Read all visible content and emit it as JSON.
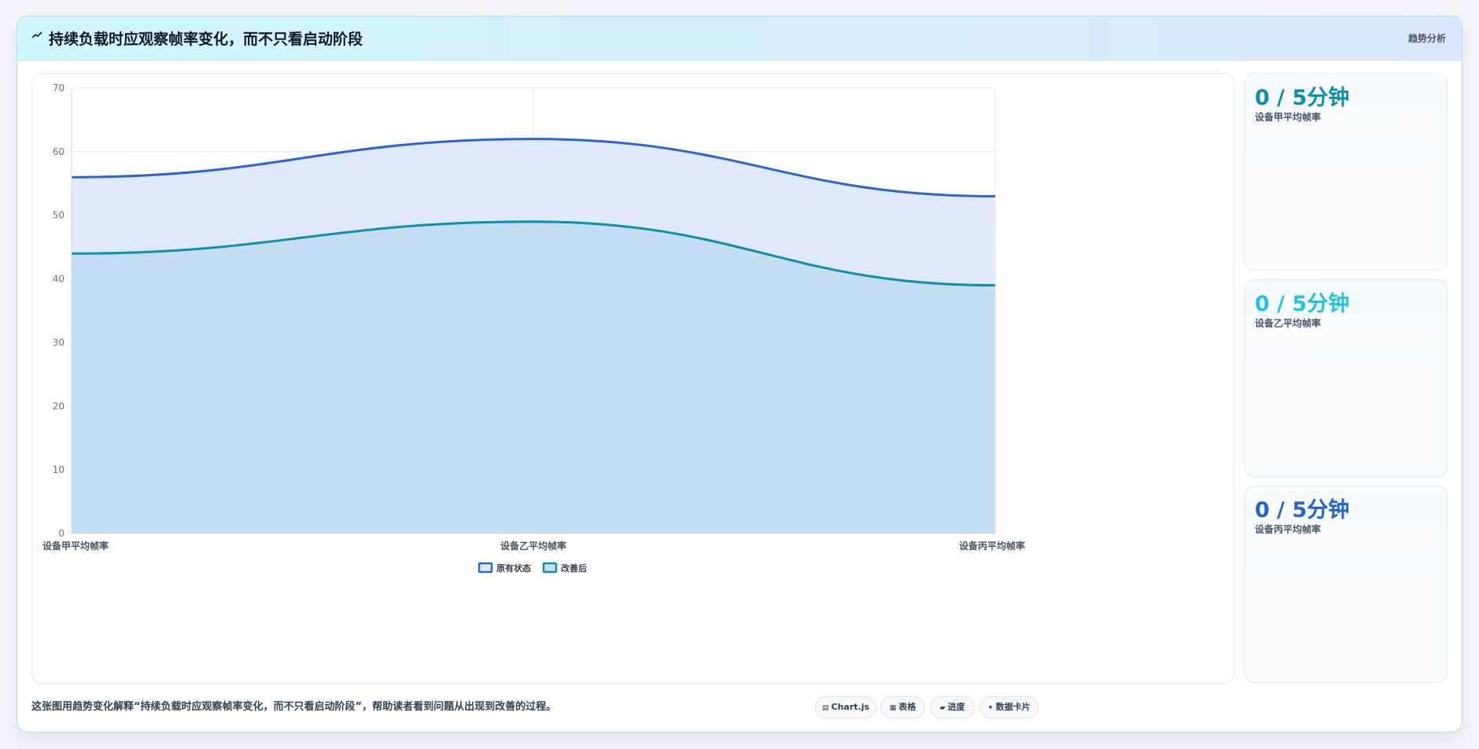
{
  "header": {
    "icon": "trend-icon",
    "title": "持续负载时应观察帧率变化，而不只看启动阶段",
    "tag": "趋势分析"
  },
  "chart_data": {
    "type": "area",
    "categories": [
      "设备甲平均帧率",
      "设备乙平均帧率",
      "设备丙平均帧率"
    ],
    "series": [
      {
        "name": "原有状态",
        "values": [
          56,
          62,
          53
        ],
        "color": "#2d63d4",
        "fill": "#dfe9fb"
      },
      {
        "name": "改善后",
        "values": [
          44,
          49,
          39
        ],
        "color": "#0e8fad",
        "fill": "#c4ddf2"
      }
    ],
    "ylim": [
      0,
      70
    ],
    "yticks": [
      0,
      10,
      20,
      30,
      40,
      50,
      60,
      70
    ],
    "grid": true,
    "legend_position": "bottom",
    "xlabel": "",
    "ylabel": "",
    "title": ""
  },
  "side_cards": [
    {
      "value": "0 / 5分钟",
      "label": "设备甲平均帧率",
      "color": "#0e8fa8"
    },
    {
      "value": "0 / 5分钟",
      "label": "设备乙平均帧率",
      "color": "#22c3dc"
    },
    {
      "value": "0 / 5分钟",
      "label": "设备丙平均帧率",
      "color": "#2563c9"
    }
  ],
  "footer": {
    "description": "这张图用趋势变化解释“持续负载时应观察帧率变化，而不只看启动阶段”，帮助读者看到问题从出现到改善的过程。",
    "pills": [
      {
        "icon": "chart-icon",
        "glyph": "▤",
        "label": "Chart.js"
      },
      {
        "icon": "table-icon",
        "glyph": "▦",
        "label": "表格"
      },
      {
        "icon": "progress-icon",
        "glyph": "▰",
        "label": "进度"
      },
      {
        "icon": "data-card-icon",
        "glyph": "✦",
        "label": "数据卡片"
      }
    ]
  }
}
